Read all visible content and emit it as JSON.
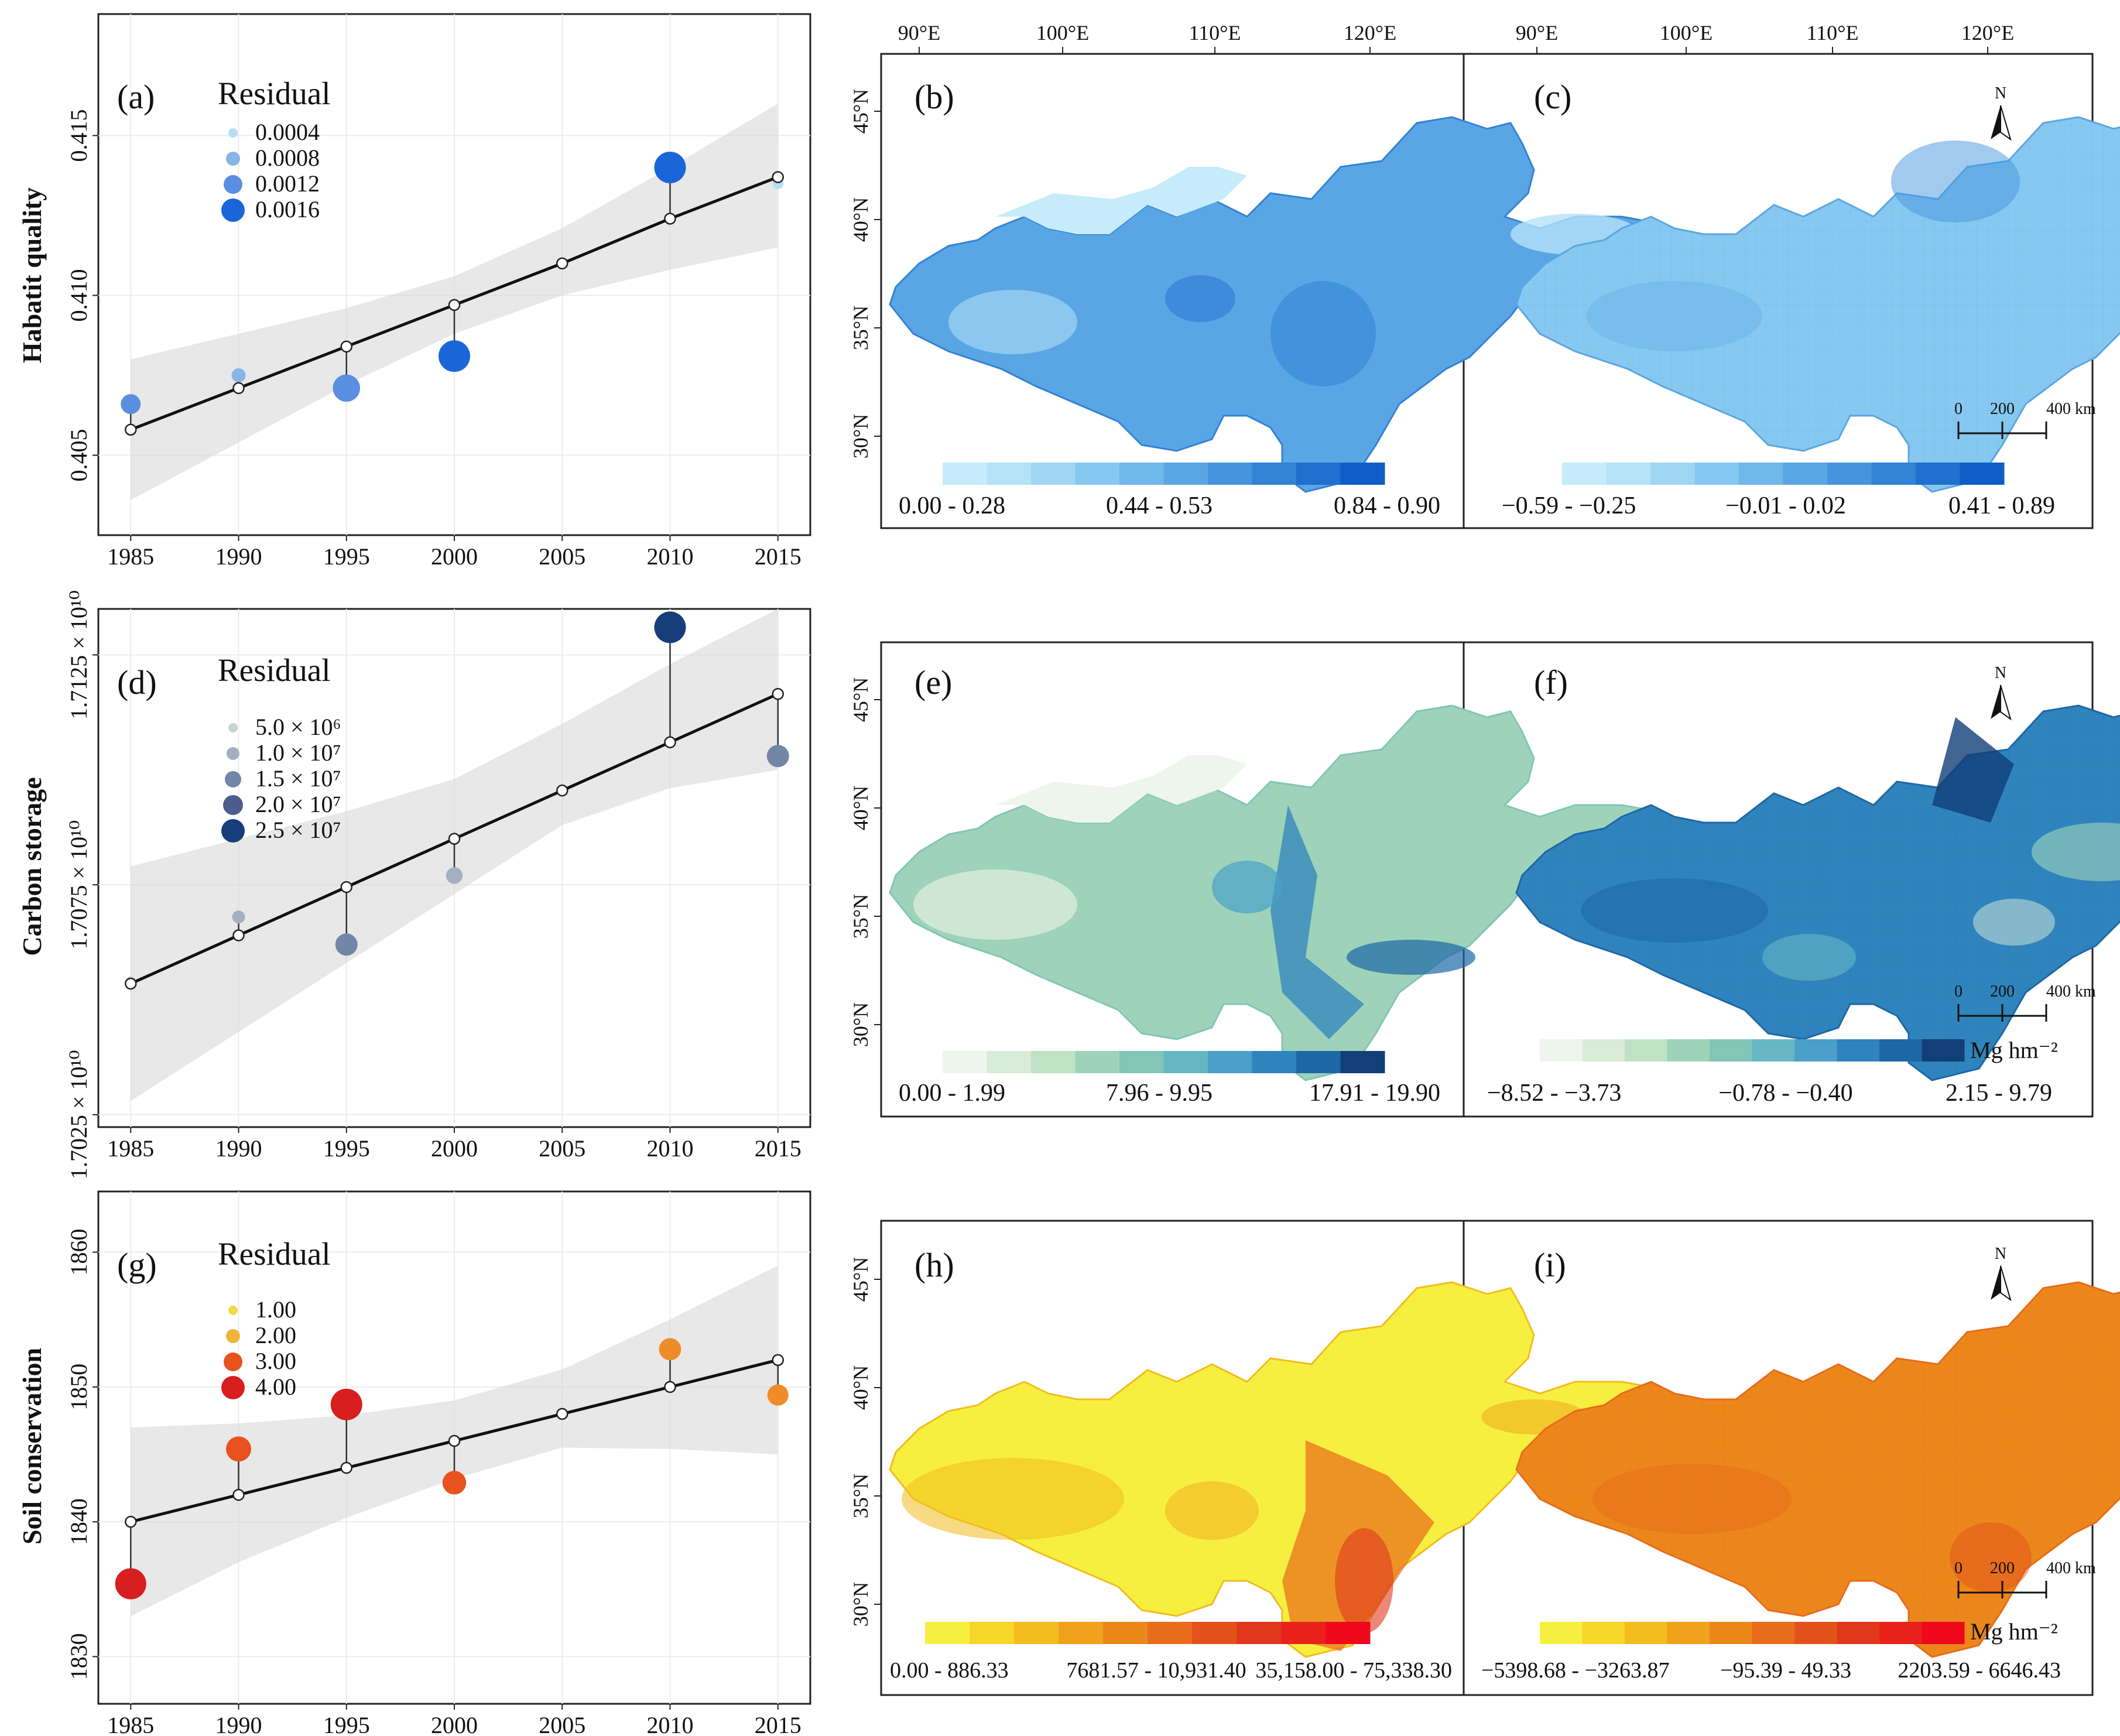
{
  "colors": {
    "hq_residual": [
      "#b5def2",
      "#8ab4e6",
      "#5a8ee0",
      "#1a66d9"
    ],
    "cs_residual": [
      "#c7d3cf",
      "#a3b0c2",
      "#7386a8",
      "#4b5d8e",
      "#173d7a"
    ],
    "sc_residual": [
      "#f4d84a",
      "#f0b43c",
      "#ee8c2a",
      "#e8521e",
      "#d81e1e"
    ],
    "habitat_ramp": [
      "#c6ecfb",
      "#b4e2f7",
      "#9fd6f4",
      "#86c8ef",
      "#6fb8ea",
      "#5aa6e4",
      "#4594dd",
      "#3282d6",
      "#2070cf",
      "#0f5ec7"
    ],
    "carbon_ramp": [
      "#eef5ec",
      "#d9ecd8",
      "#bfe1c6",
      "#9ed3b9",
      "#82c6b8",
      "#66b7c2",
      "#4aa0c9",
      "#2f84bd",
      "#1e67a6",
      "#123f78"
    ],
    "soil_ramp": [
      "#f7ef3f",
      "#f6d628",
      "#f3bc1f",
      "#f0a21c",
      "#ec871c",
      "#e86c1c",
      "#e4521c",
      "#e0381c",
      "#ea221c",
      "#f0081c"
    ]
  },
  "panels": {
    "a": {
      "letter": "(a)"
    },
    "b": {
      "letter": "(b)",
      "legend": [
        "0.00 - 0.28",
        "0.44 - 0.53",
        "0.84 - 0.90"
      ]
    },
    "c": {
      "letter": "(c)",
      "legend": [
        "−0.59 - −0.25",
        "−0.01 - 0.02",
        "0.41 - 0.89"
      ]
    },
    "d": {
      "letter": "(d)"
    },
    "e": {
      "letter": "(e)",
      "legend": [
        "0.00 - 1.99",
        "7.96 - 9.95",
        "17.91 - 19.90"
      ]
    },
    "f": {
      "letter": "(f)",
      "legend": [
        "−8.52 - −3.73",
        "−0.78 - −0.40",
        "2.15 - 9.79"
      ],
      "unit": "Mg hm⁻²"
    },
    "g": {
      "letter": "(g)"
    },
    "h": {
      "letter": "(h)",
      "legend": [
        "0.00 - 886.33",
        "7681.57 - 10,931.40",
        "35,158.00 - 75,338.30"
      ]
    },
    "i": {
      "letter": "(i)",
      "legend": [
        "−5398.68 - −3263.87",
        "−95.39 - 49.33",
        "2203.59 - 6646.43"
      ],
      "unit": "Mg hm⁻²"
    }
  },
  "map_axes": {
    "lon_labels": [
      "90°E",
      "100°E",
      "110°E",
      "120°E"
    ],
    "lat_labels": [
      "45°N",
      "40°N",
      "35°N",
      "30°N"
    ],
    "north": "N",
    "scale_labels": [
      "0",
      "200",
      "400 km"
    ]
  },
  "chart_data": [
    {
      "id": "a",
      "type": "scatter",
      "ylabel": "Habatit quality",
      "xlabel": "",
      "x": [
        1985,
        1990,
        1995,
        2000,
        2005,
        2010,
        2015
      ],
      "fitted": [
        0.4058,
        0.4071,
        0.4084,
        0.4097,
        0.411,
        0.4124,
        0.4137
      ],
      "observed": [
        0.4066,
        0.4075,
        0.4071,
        0.4081,
        0.411,
        0.414,
        0.4135
      ],
      "ci_lower": [
        0.4036,
        0.4054,
        0.4072,
        0.4088,
        0.41,
        0.4108,
        0.4115
      ],
      "ci_upper": [
        0.408,
        0.4088,
        0.4096,
        0.4106,
        0.4121,
        0.414,
        0.416
      ],
      "residual_size": [
        0.0008,
        0.0004,
        0.0013,
        0.0016,
        0.0001,
        0.0016,
        0.0002
      ],
      "xlim": [
        1983.5,
        2016.5
      ],
      "ylim": [
        0.4025,
        0.4188
      ],
      "yticks": [
        0.405,
        0.41,
        0.415
      ],
      "ytick_labels": [
        "0.405",
        "0.410",
        "0.415"
      ],
      "xticks": [
        1985,
        1990,
        1995,
        2000,
        2005,
        2010,
        2015
      ],
      "xtick_labels": [
        "1985",
        "1990",
        "1995",
        "2000",
        "2005",
        "2010",
        "2015"
      ],
      "legend_title": "Residual",
      "legend_labels": [
        "0.0004",
        "0.0008",
        "0.0012",
        "0.0016"
      ],
      "legend_position": "top-left",
      "grid": true
    },
    {
      "id": "d",
      "type": "scatter",
      "ylabel": "Carbon storage",
      "xlabel": "",
      "x": [
        1985,
        1990,
        1995,
        2000,
        2005,
        2010,
        2015
      ],
      "fitted": [
        17053500000.0,
        17064000000.0,
        17074500000.0,
        17085000000.0,
        17095500000.0,
        17106000000.0,
        17116500000.0
      ],
      "observed": [
        17054000000.0,
        17068000000.0,
        17062000000.0,
        17077000000.0,
        17095500000.0,
        17131000000.0,
        17103000000.0
      ],
      "ci_lower": [
        17028000000.0,
        17043000000.0,
        17058000000.0,
        17073000000.0,
        17088000000.0,
        17096000000.0,
        17100000000.0
      ],
      "ci_upper": [
        17079000000.0,
        17085000000.0,
        17091000000.0,
        17098000000.0,
        17110000000.0,
        17123000000.0,
        17135000000.0
      ],
      "residual_size": [
        2000000.0,
        5000000.0,
        15000000.0,
        9000000.0,
        500000.0,
        25000000.0,
        15000000.0
      ],
      "xlim": [
        1983.5,
        2016.5
      ],
      "ylim": [
        17022300000.0,
        17135000000.0
      ],
      "yticks": [
        17025000000.0,
        17075000000.0,
        17125000000.0
      ],
      "ytick_labels": [
        "1.7025 × 10¹⁰",
        "1.7075 × 10¹⁰",
        "1.7125 × 10¹⁰"
      ],
      "xticks": [
        1985,
        1990,
        1995,
        2000,
        2005,
        2010,
        2015
      ],
      "xtick_labels": [
        "1985",
        "1990",
        "1995",
        "2000",
        "2005",
        "2010",
        "2015"
      ],
      "legend_title": "Residual",
      "legend_labels": [
        "5.0 × 10⁶",
        "1.0 × 10⁷",
        "1.5 × 10⁷",
        "2.0 × 10⁷",
        "2.5 × 10⁷"
      ],
      "legend_position": "top-left",
      "grid": true
    },
    {
      "id": "g",
      "type": "scatter",
      "ylabel": "Soil conservation",
      "xlabel": "",
      "x": [
        1985,
        1990,
        1995,
        2000,
        2005,
        2010,
        2015
      ],
      "fitted": [
        1840.0,
        1842.0,
        1844.0,
        1846.0,
        1848.0,
        1850.0,
        1852.0
      ],
      "observed": [
        1835.4,
        1845.4,
        1848.7,
        1842.9,
        1848.0,
        1852.8,
        1849.4
      ],
      "ci_lower": [
        1833.0,
        1837.0,
        1840.3,
        1843.2,
        1845.5,
        1845.4,
        1845.0
      ],
      "ci_upper": [
        1847.0,
        1847.3,
        1847.9,
        1849.0,
        1851.3,
        1855.0,
        1859.0
      ],
      "residual_size": [
        4.6,
        3.4,
        4.7,
        3.1,
        0.2,
        2.8,
        2.6
      ],
      "xlim": [
        1983.5,
        2016.5
      ],
      "ylim": [
        1826.5,
        1864.5
      ],
      "yticks": [
        1830,
        1840,
        1850,
        1860
      ],
      "ytick_labels": [
        "1830",
        "1840",
        "1850",
        "1860"
      ],
      "xticks": [
        1985,
        1990,
        1995,
        2000,
        2005,
        2010,
        2015
      ],
      "xtick_labels": [
        "1985",
        "1990",
        "1995",
        "2000",
        "2005",
        "2010",
        "2015"
      ],
      "legend_title": "Residual",
      "legend_labels": [
        "1.00",
        "2.00",
        "3.00",
        "4.00"
      ],
      "legend_position": "top-left",
      "grid": true
    }
  ]
}
